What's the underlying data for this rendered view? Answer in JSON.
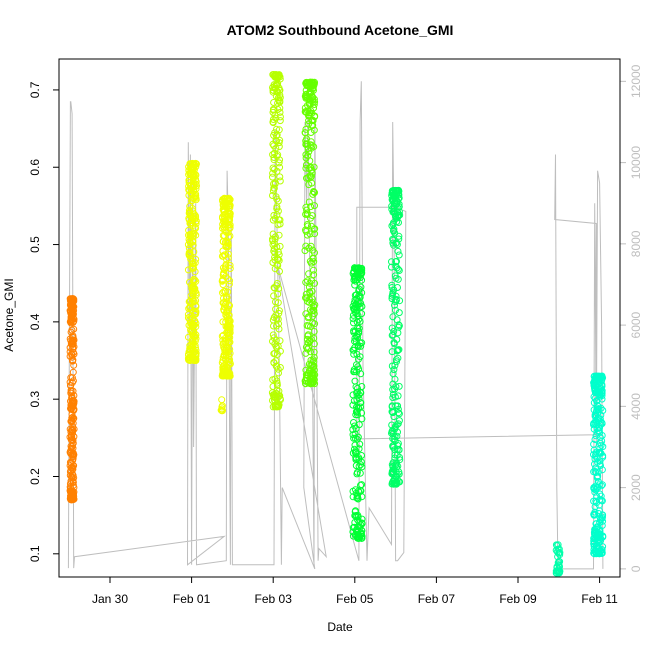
{
  "chart_data": {
    "type": "scatter",
    "title": "ATOM2 Southbound Acetone_GMI",
    "xlabel": "Date",
    "ylabel": "Acetone_GMI",
    "x_ticks": [
      "Jan 30",
      "Feb 01",
      "Feb 03",
      "Feb 05",
      "Feb 07",
      "Feb 09",
      "Feb 11"
    ],
    "x_tick_days": [
      0,
      2,
      4,
      6,
      8,
      10,
      12
    ],
    "xlim_days": [
      -1.25,
      12.5
    ],
    "ylim": [
      0.07,
      0.74
    ],
    "y_ticks": [
      0.1,
      0.2,
      0.3,
      0.4,
      0.5,
      0.6,
      0.7
    ],
    "y2_ticks": [
      0,
      2000,
      4000,
      6000,
      8000,
      10000,
      12000
    ],
    "y2lim": [
      -200,
      12550
    ],
    "grid": false,
    "altitude_color": "#bebebe",
    "series": [
      {
        "color": "#ff8000",
        "x_range": [
          -0.98,
          -0.88
        ],
        "y_range": [
          0.17,
          0.43
        ],
        "n": 260
      },
      {
        "color": "#eeff00",
        "x_range": [
          1.92,
          2.12
        ],
        "y_range": [
          0.35,
          0.605
        ],
        "n": 260
      },
      {
        "color": "#eeff00",
        "x_range": [
          2.75,
          2.95
        ],
        "y_range": [
          0.33,
          0.56
        ],
        "n": 260
      },
      {
        "color": "#eeff00",
        "x_range": [
          2.72,
          2.76
        ],
        "y_range": [
          0.285,
          0.3
        ],
        "n": 8
      },
      {
        "color": "#b6ff00",
        "x_range": [
          3.98,
          4.18
        ],
        "y_range": [
          0.29,
          0.72
        ],
        "n": 220
      },
      {
        "color": "#66ff00",
        "x_range": [
          4.78,
          5.02
        ],
        "y_range": [
          0.32,
          0.71
        ],
        "n": 260
      },
      {
        "color": "#00ff33",
        "x_range": [
          5.95,
          6.18
        ],
        "y_range": [
          0.12,
          0.47
        ],
        "n": 240
      },
      {
        "color": "#00ff66",
        "x_range": [
          6.9,
          7.1
        ],
        "y_range": [
          0.19,
          0.57
        ],
        "n": 240
      },
      {
        "color": "#00ffaa",
        "x_range": [
          10.93,
          11.03
        ],
        "y_range": [
          0.075,
          0.112
        ],
        "n": 30
      },
      {
        "color": "#00ffcc",
        "x_range": [
          11.85,
          12.08
        ],
        "y_range": [
          0.1,
          0.33
        ],
        "n": 260
      }
    ],
    "altitude_profile": [
      [
        -1.02,
        20
      ],
      [
        -0.97,
        11500
      ],
      [
        -0.96,
        11500
      ],
      [
        -0.93,
        11200
      ],
      [
        -0.9,
        3000
      ],
      [
        -0.89,
        20
      ],
      [
        -0.87,
        300
      ],
      [
        2.8,
        800
      ],
      [
        1.9,
        100
      ],
      [
        1.92,
        10500
      ],
      [
        1.95,
        6000
      ],
      [
        1.97,
        10200
      ],
      [
        2.0,
        100
      ],
      [
        2.03,
        9500
      ],
      [
        2.05,
        3000
      ],
      [
        2.1,
        9000
      ],
      [
        2.12,
        100
      ],
      [
        2.85,
        200
      ],
      [
        2.87,
        9800
      ],
      [
        2.9,
        8500
      ],
      [
        2.95,
        100
      ],
      [
        2.97,
        9000
      ],
      [
        3.0,
        100
      ],
      [
        4.02,
        100
      ],
      [
        4.05,
        10800
      ],
      [
        4.1,
        8000
      ],
      [
        4.15,
        5000
      ],
      [
        4.2,
        100
      ],
      [
        4.22,
        2000
      ],
      [
        5.02,
        0
      ],
      [
        4.75,
        2000
      ],
      [
        4.78,
        11000
      ],
      [
        4.82,
        9000
      ],
      [
        4.85,
        11300
      ],
      [
        4.9,
        7000
      ],
      [
        4.95,
        6500
      ],
      [
        5.0,
        100
      ],
      [
        5.02,
        11000
      ],
      [
        5.05,
        8000
      ],
      [
        5.1,
        200
      ],
      [
        5.12,
        500
      ],
      [
        5.3,
        300
      ],
      [
        4.1,
        7500
      ],
      [
        6.1,
        200
      ],
      [
        6.13,
        11000
      ],
      [
        6.16,
        12000
      ],
      [
        6.2,
        5000
      ],
      [
        6.3,
        200
      ],
      [
        6.35,
        1500
      ],
      [
        6.9,
        600
      ],
      [
        6.93,
        11000
      ],
      [
        6.96,
        8500
      ],
      [
        7.0,
        200
      ],
      [
        7.05,
        200
      ],
      [
        7.2,
        400
      ],
      [
        7.25,
        8800
      ],
      [
        7.0,
        8900
      ],
      [
        6.05,
        8900
      ],
      [
        6.05,
        3200
      ],
      [
        11.9,
        3300
      ],
      [
        11.92,
        8500
      ],
      [
        10.9,
        8600
      ],
      [
        10.92,
        10200
      ],
      [
        10.95,
        2000
      ],
      [
        10.98,
        0
      ],
      [
        11.85,
        0
      ],
      [
        11.88,
        9000
      ],
      [
        11.92,
        3000
      ],
      [
        11.95,
        9800
      ],
      [
        12.0,
        9500
      ],
      [
        12.05,
        6000
      ],
      [
        12.08,
        0
      ]
    ]
  }
}
